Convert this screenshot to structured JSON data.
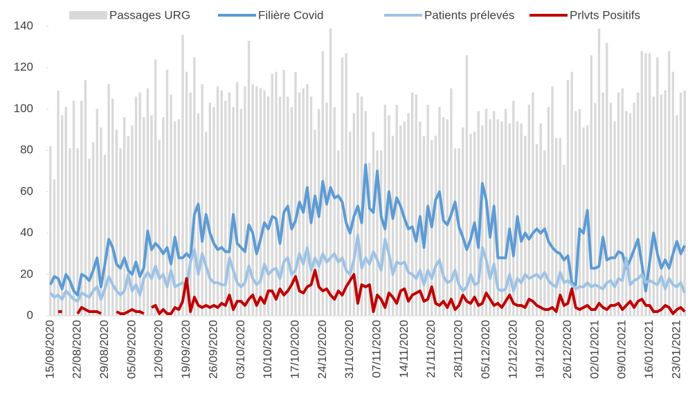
{
  "chart_data": {
    "type": "bar",
    "categories": [
      "15/08/2020",
      null,
      null,
      null,
      null,
      null,
      null,
      "22/08/2020",
      null,
      null,
      null,
      null,
      null,
      null,
      "29/08/2020",
      null,
      null,
      null,
      null,
      null,
      null,
      "05/09/2020",
      null,
      null,
      null,
      null,
      null,
      null,
      "12/09/2020",
      null,
      null,
      null,
      null,
      null,
      null,
      "19/09/2020",
      null,
      null,
      null,
      null,
      null,
      null,
      "26/09/2020",
      null,
      null,
      null,
      null,
      null,
      null,
      "03/10/2020",
      null,
      null,
      null,
      null,
      null,
      null,
      "10/10/2020",
      null,
      null,
      null,
      null,
      null,
      null,
      "17/10/2020",
      null,
      null,
      null,
      null,
      null,
      null,
      "24/10/2020",
      null,
      null,
      null,
      null,
      null,
      null,
      "31/10/2020",
      null,
      null,
      null,
      null,
      null,
      null,
      "07/11/2020",
      null,
      null,
      null,
      null,
      null,
      null,
      "14/11/2020",
      null,
      null,
      null,
      null,
      null,
      null,
      "21/11/2020",
      null,
      null,
      null,
      null,
      null,
      null,
      "28/11/2020",
      null,
      null,
      null,
      null,
      null,
      null,
      "05/12/2020",
      null,
      null,
      null,
      null,
      null,
      null,
      "12/12/2020",
      null,
      null,
      null,
      null,
      null,
      null,
      "19/12/2020",
      null,
      null,
      null,
      null,
      null,
      null,
      "26/12/2020",
      null,
      null,
      null,
      null,
      null,
      null,
      "02/01/2021",
      null,
      null,
      null,
      null,
      null,
      null,
      "09/01/2021",
      null,
      null,
      null,
      null,
      null,
      null,
      "16/01/2021",
      null,
      null,
      null,
      null,
      null,
      null,
      "23/01/2021",
      null,
      null
    ],
    "series": [
      {
        "name": "Passages URG",
        "type": "bar",
        "color": "#d9d9d9",
        "values": [
          82,
          66,
          109,
          97,
          101,
          81,
          104,
          81,
          104,
          114,
          76,
          84,
          100,
          91,
          78,
          112,
          105,
          90,
          81,
          96,
          87,
          92,
          106,
          108,
          96,
          110,
          97,
          124,
          85,
          96,
          119,
          107,
          94,
          95,
          136,
          118,
          108,
          125,
          98,
          112,
          89,
          103,
          101,
          111,
          109,
          104,
          108,
          101,
          113,
          100,
          111,
          133,
          112,
          111,
          110,
          109,
          106,
          117,
          118,
          106,
          119,
          106,
          101,
          118,
          108,
          110,
          112,
          106,
          90,
          100,
          128,
          103,
          139,
          101,
          80,
          125,
          127,
          89,
          98,
          108,
          106,
          99,
          74,
          89,
          80,
          80,
          102,
          97,
          87,
          102,
          92,
          94,
          98,
          108,
          107,
          94,
          87,
          102,
          85,
          87,
          101,
          96,
          95,
          110,
          81,
          81,
          91,
          126,
          88,
          89,
          99,
          92,
          100,
          95,
          99,
          95,
          94,
          100,
          93,
          104,
          94,
          93,
          87,
          102,
          108,
          83,
          93,
          80,
          101,
          111,
          86,
          86,
          73,
          114,
          118,
          99,
          100,
          91,
          92,
          126,
          103,
          139,
          108,
          132,
          103,
          94,
          108,
          110,
          99,
          98,
          103,
          108,
          128,
          127,
          127,
          106,
          125,
          107,
          109,
          128,
          118,
          97,
          108,
          109
        ]
      },
      {
        "name": "Filière Covid",
        "type": "line",
        "color": "#5b9bd5",
        "values": [
          15,
          19,
          18,
          13,
          20,
          17,
          12,
          10,
          20,
          19,
          17,
          22,
          28,
          14,
          25,
          37,
          33,
          25,
          23,
          28,
          22,
          20,
          26,
          19,
          23,
          41,
          32,
          35,
          33,
          30,
          33,
          25,
          38,
          28,
          28,
          30,
          28,
          49,
          54,
          36,
          49,
          40,
          35,
          32,
          33,
          31,
          31,
          49,
          35,
          33,
          31,
          44,
          40,
          30,
          37,
          45,
          42,
          48,
          47,
          35,
          50,
          53,
          42,
          46,
          55,
          50,
          62,
          45,
          58,
          48,
          65,
          54,
          62,
          57,
          58,
          55,
          45,
          40,
          48,
          53,
          45,
          73,
          52,
          50,
          70,
          48,
          42,
          60,
          47,
          57,
          53,
          47,
          42,
          43,
          36,
          48,
          33,
          53,
          43,
          56,
          60,
          46,
          44,
          49,
          55,
          43,
          38,
          32,
          37,
          45,
          33,
          64,
          56,
          38,
          53,
          28,
          28,
          28,
          42,
          29,
          48,
          36,
          40,
          37,
          40,
          42,
          40,
          42,
          36,
          33,
          31,
          30,
          27,
          29,
          16,
          15,
          42,
          40,
          51,
          23,
          23,
          24,
          38,
          27,
          28,
          28,
          31,
          30,
          23,
          27,
          32,
          37,
          25,
          12,
          26,
          40,
          30,
          23,
          27,
          23,
          30,
          36,
          30,
          34
        ]
      },
      {
        "name": "Patients prélevés",
        "type": "line",
        "color": "#9dc3e6",
        "values": [
          11,
          9,
          10,
          8,
          12,
          10,
          8,
          7,
          11,
          10,
          9,
          12,
          14,
          8,
          13,
          19,
          15,
          12,
          10,
          12,
          20,
          12,
          15,
          10,
          18,
          21,
          18,
          24,
          18,
          20,
          14,
          22,
          14,
          15,
          16,
          14,
          26,
          32,
          20,
          30,
          24,
          18,
          16,
          16,
          15,
          15,
          28,
          22,
          16,
          14,
          16,
          24,
          18,
          15,
          17,
          25,
          20,
          22,
          23,
          18,
          26,
          28,
          20,
          22,
          30,
          25,
          33,
          22,
          28,
          24,
          30,
          26,
          28,
          30,
          26,
          28,
          22,
          20,
          27,
          39,
          23,
          28,
          25,
          31,
          27,
          22,
          37,
          30,
          20,
          26,
          25,
          26,
          21,
          20,
          18,
          22,
          15,
          22,
          18,
          24,
          27,
          19,
          16,
          17,
          22,
          15,
          12,
          14,
          20,
          15,
          16,
          33,
          27,
          18,
          25,
          13,
          12,
          13,
          20,
          12,
          18,
          16,
          20,
          18,
          19,
          20,
          18,
          21,
          17,
          15,
          14,
          21,
          16,
          17,
          15,
          13,
          14,
          14,
          16,
          14,
          15,
          14,
          13,
          16,
          17,
          14,
          18,
          17,
          28,
          15,
          17,
          18,
          20,
          16,
          17,
          16,
          15,
          19,
          13,
          18,
          15,
          14,
          16,
          11
        ]
      },
      {
        "name": "Prlvts Positifs",
        "type": "line",
        "color": "#c00000",
        "values": [
          null,
          null,
          2,
          2,
          null,
          null,
          null,
          1,
          4,
          3,
          2,
          2,
          2,
          1,
          null,
          null,
          null,
          2,
          1,
          1,
          2,
          3,
          2,
          2,
          1,
          null,
          4,
          5,
          1,
          3,
          1,
          1,
          4,
          3,
          7,
          18,
          2,
          9,
          5,
          4,
          5,
          4,
          5,
          4,
          6,
          5,
          10,
          3,
          7,
          7,
          5,
          8,
          10,
          5,
          9,
          6,
          12,
          12,
          8,
          13,
          10,
          12,
          15,
          19,
          12,
          11,
          14,
          15,
          22,
          14,
          12,
          13,
          10,
          8,
          12,
          10,
          14,
          17,
          20,
          6,
          15,
          14,
          15,
          2,
          10,
          8,
          4,
          11,
          9,
          6,
          12,
          13,
          7,
          10,
          11,
          12,
          7,
          8,
          14,
          6,
          5,
          7,
          4,
          8,
          3,
          5,
          10,
          7,
          6,
          9,
          5,
          6,
          11,
          8,
          5,
          6,
          4,
          7,
          10,
          6,
          5,
          5,
          4,
          8,
          7,
          5,
          4,
          3,
          3,
          4,
          2,
          10,
          5,
          6,
          13,
          4,
          3,
          4,
          5,
          3,
          3,
          6,
          4,
          3,
          5,
          5,
          6,
          3,
          5,
          7,
          4,
          7,
          8,
          5,
          5,
          2,
          2,
          3,
          5,
          4,
          1,
          3,
          4,
          2
        ]
      }
    ],
    "ylim": [
      0,
      140
    ],
    "yticks": [
      0,
      20,
      40,
      60,
      80,
      100,
      120,
      140
    ],
    "legend": "top"
  }
}
